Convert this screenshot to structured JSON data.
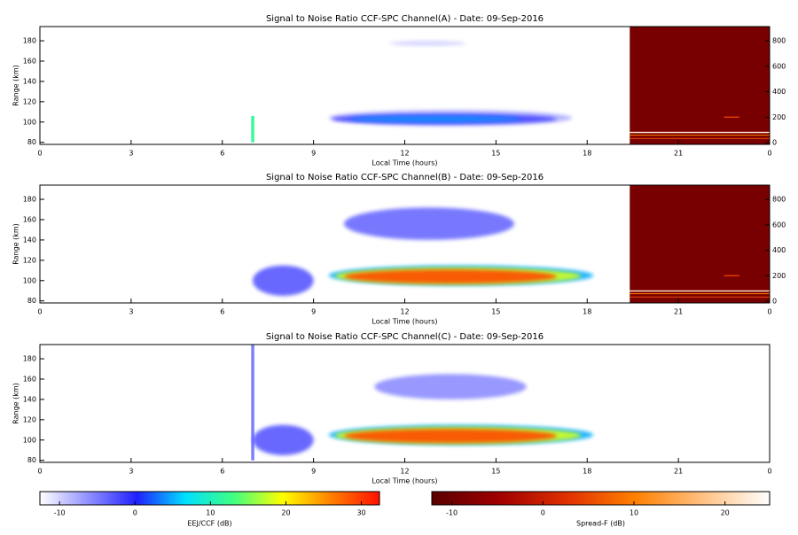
{
  "chart_data": [
    {
      "type": "heatmap",
      "title": "Signal to Noise Ratio CCF-SPC Channel(A) - Date: 09-Sep-2016",
      "xlabel": "Local Time (hours)",
      "ylabel": "Range (km)",
      "xlim": [
        0,
        24
      ],
      "xticks": [
        0,
        3,
        6,
        9,
        12,
        15,
        18,
        21,
        {
          "value": 24,
          "label": "0"
        }
      ],
      "ylim": [
        78,
        194
      ],
      "yticks": [
        80,
        100,
        120,
        140,
        160,
        180
      ],
      "echoes": [
        {
          "x": [
            9.5,
            17.5
          ],
          "range": [
            96,
            112
          ],
          "snr": -8
        },
        {
          "x": [
            9.6,
            17.0
          ],
          "range": [
            98,
            108
          ],
          "snr": -2
        },
        {
          "x": [
            10.2,
            15.8
          ],
          "range": [
            100,
            106
          ],
          "snr": 4
        },
        {
          "x": [
            11.5,
            14.0
          ],
          "range": [
            175,
            180
          ],
          "snr": -10
        },
        {
          "x": [
            6.95,
            7.05
          ],
          "range": [
            80,
            106
          ],
          "snr": 12
        }
      ],
      "spread_f": {
        "x": [
          19.4,
          24
        ],
        "y2lim": [
          -14,
          913
        ],
        "y2ticks": [
          0,
          200,
          400,
          600,
          800
        ],
        "background": -9,
        "layers": [
          {
            "x": [
              19.4,
              24
            ],
            "height": [
              75,
              85
            ],
            "value": 22
          },
          {
            "x": [
              19.4,
              24
            ],
            "height": [
              55,
              62
            ],
            "value": 10
          },
          {
            "x": [
              19.4,
              24
            ],
            "height": [
              30,
              36
            ],
            "value": 5
          },
          {
            "x": [
              22.5,
              23.0
            ],
            "height": [
              195,
              205
            ],
            "value": 4
          }
        ]
      }
    },
    {
      "type": "heatmap",
      "title": "Signal to Noise Ratio CCF-SPC Channel(B) - Date: 09-Sep-2016",
      "xlabel": "Local Time (hours)",
      "ylabel": "Range (km)",
      "xlim": [
        0,
        24
      ],
      "xticks": [
        0,
        3,
        6,
        9,
        12,
        15,
        18,
        21,
        {
          "value": 24,
          "label": "0"
        }
      ],
      "ylim": [
        78,
        194
      ],
      "yticks": [
        80,
        100,
        120,
        140,
        160,
        180
      ],
      "echoes": [
        {
          "x": [
            7.0,
            9.0
          ],
          "range": [
            85,
            115
          ],
          "snr": -3
        },
        {
          "x": [
            10.0,
            15.6
          ],
          "range": [
            140,
            172
          ],
          "snr": -4
        },
        {
          "x": [
            9.5,
            18.2
          ],
          "range": [
            95,
            115
          ],
          "snr": 5
        },
        {
          "x": [
            9.7,
            17.8
          ],
          "range": [
            96,
            113
          ],
          "snr": 18
        },
        {
          "x": [
            10.0,
            17.0
          ],
          "range": [
            97,
            111
          ],
          "snr": 29
        }
      ],
      "spread_f": {
        "x": [
          19.4,
          24
        ],
        "y2lim": [
          -14,
          913
        ],
        "y2ticks": [
          0,
          200,
          400,
          600,
          800
        ],
        "background": -9,
        "layers": [
          {
            "x": [
              19.4,
              24
            ],
            "height": [
              75,
              85
            ],
            "value": 22
          },
          {
            "x": [
              19.4,
              24
            ],
            "height": [
              55,
              62
            ],
            "value": 10
          },
          {
            "x": [
              19.4,
              24
            ],
            "height": [
              30,
              36
            ],
            "value": 5
          },
          {
            "x": [
              22.5,
              23.0
            ],
            "height": [
              195,
              205
            ],
            "value": 4
          }
        ]
      }
    },
    {
      "type": "heatmap",
      "title": "Signal to Noise Ratio CCF-SPC Channel(C) - Date: 09-Sep-2016",
      "xlabel": "Local Time (hours)",
      "ylabel": "Range (km)",
      "xlim": [
        0,
        24
      ],
      "xticks": [
        0,
        3,
        6,
        9,
        12,
        15,
        18,
        21,
        {
          "value": 24,
          "label": "0"
        }
      ],
      "ylim": [
        78,
        194
      ],
      "yticks": [
        80,
        100,
        120,
        140,
        160,
        180
      ],
      "echoes": [
        {
          "x": [
            6.95,
            7.05
          ],
          "range": [
            80,
            194
          ],
          "snr": -5
        },
        {
          "x": [
            7.0,
            9.0
          ],
          "range": [
            85,
            115
          ],
          "snr": -3
        },
        {
          "x": [
            11.0,
            16.0
          ],
          "range": [
            140,
            165
          ],
          "snr": -6
        },
        {
          "x": [
            9.5,
            18.2
          ],
          "range": [
            95,
            115
          ],
          "snr": 5
        },
        {
          "x": [
            9.7,
            17.8
          ],
          "range": [
            96,
            113
          ],
          "snr": 18
        },
        {
          "x": [
            10.0,
            17.0
          ],
          "range": [
            97,
            111
          ],
          "snr": 29
        }
      ]
    }
  ],
  "colorbars": [
    {
      "label": "EEJ/CCF (dB)",
      "lim": [
        -12.6,
        32.4
      ],
      "ticks": [
        -10,
        0,
        10,
        20,
        30
      ],
      "colors": [
        "#ffffff",
        "#9090ff",
        "#2020ff",
        "#00e0ff",
        "#40ff80",
        "#ffff00",
        "#ff8000",
        "#ff1000"
      ]
    },
    {
      "label": "Spread-F (dB)",
      "lim": [
        -12.2,
        24.9
      ],
      "ticks": [
        -10,
        0,
        10,
        20
      ],
      "colors": [
        "#5a0000",
        "#a00000",
        "#e03000",
        "#ff8000",
        "#ffc080",
        "#ffffff"
      ]
    }
  ]
}
